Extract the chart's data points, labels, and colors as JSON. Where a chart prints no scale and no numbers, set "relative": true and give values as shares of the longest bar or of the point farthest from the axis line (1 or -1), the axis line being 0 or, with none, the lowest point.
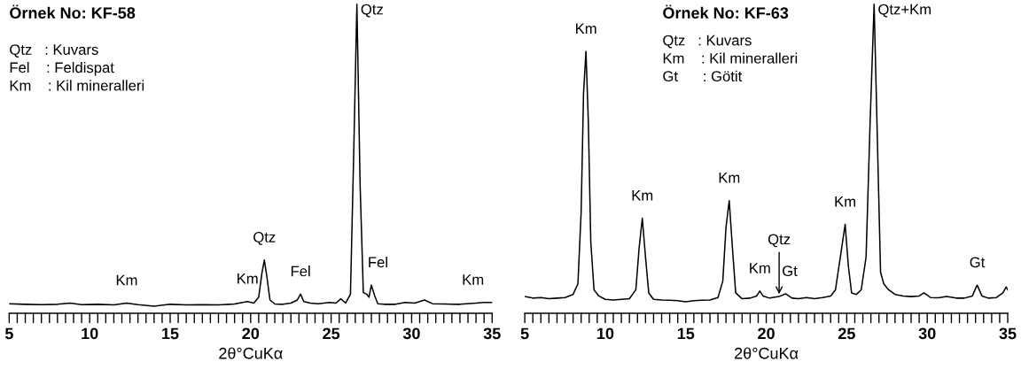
{
  "chart_data": [
    {
      "type": "line",
      "title": "Örnek No: KF-58",
      "xlabel": "2θ°CuKα",
      "relative": true,
      "xlim": [
        5,
        35
      ],
      "xticks": [
        5,
        {
          "value": 5.5,
          "label": null
        },
        {
          "value": 6,
          "label": null
        },
        {
          "value": 6.5,
          "label": null
        },
        {
          "value": 7,
          "label": null
        },
        {
          "value": 7.5,
          "label": null
        },
        {
          "value": 8,
          "label": null
        },
        {
          "value": 8.5,
          "label": null
        },
        {
          "value": 9,
          "label": null
        },
        {
          "value": 9.5,
          "label": null
        },
        10,
        {
          "value": 10.5,
          "label": null
        },
        {
          "value": 11,
          "label": null
        },
        {
          "value": 11.5,
          "label": null
        },
        {
          "value": 12,
          "label": null
        },
        {
          "value": 12.5,
          "label": null
        },
        {
          "value": 13,
          "label": null
        },
        {
          "value": 13.5,
          "label": null
        },
        {
          "value": 14,
          "label": null
        },
        {
          "value": 14.5,
          "label": null
        },
        15,
        {
          "value": 15.5,
          "label": null
        },
        {
          "value": 16,
          "label": null
        },
        {
          "value": 16.5,
          "label": null
        },
        {
          "value": 17,
          "label": null
        },
        {
          "value": 17.5,
          "label": null
        },
        {
          "value": 18,
          "label": null
        },
        {
          "value": 18.5,
          "label": null
        },
        {
          "value": 19,
          "label": null
        },
        {
          "value": 19.5,
          "label": null
        },
        20,
        {
          "value": 20.5,
          "label": null
        },
        {
          "value": 21,
          "label": null
        },
        {
          "value": 21.5,
          "label": null
        },
        {
          "value": 22,
          "label": null
        },
        {
          "value": 22.5,
          "label": null
        },
        {
          "value": 23,
          "label": null
        },
        {
          "value": 23.5,
          "label": null
        },
        {
          "value": 24,
          "label": null
        },
        {
          "value": 24.5,
          "label": null
        },
        25,
        {
          "value": 25.5,
          "label": null
        },
        {
          "value": 26,
          "label": null
        },
        {
          "value": 26.5,
          "label": null
        },
        {
          "value": 27,
          "label": null
        },
        {
          "value": 27.5,
          "label": null
        },
        {
          "value": 28,
          "label": null
        },
        {
          "value": 28.5,
          "label": null
        },
        {
          "value": 29,
          "label": null
        },
        {
          "value": 29.5,
          "label": null
        },
        30,
        {
          "value": 30.5,
          "label": null
        },
        {
          "value": 31,
          "label": null
        },
        {
          "value": 31.5,
          "label": null
        },
        {
          "value": 32,
          "label": null
        },
        {
          "value": 32.5,
          "label": null
        },
        {
          "value": 33,
          "label": null
        },
        {
          "value": 33.5,
          "label": null
        },
        {
          "value": 34,
          "label": null
        },
        {
          "value": 34.5,
          "label": null
        },
        35
      ],
      "tick_labels": "x",
      "grid": false,
      "legend": false,
      "marker": "none",
      "line_style": "solid",
      "series": [
        {
          "color": "#000000",
          "x": [
            5,
            6,
            7,
            8,
            8.8,
            9.5,
            10.5,
            11.5,
            12.3,
            13,
            14,
            15,
            16,
            17,
            18,
            19,
            19.8,
            20.2,
            20.5,
            20.7,
            20.85,
            21.0,
            21.2,
            21.5,
            22,
            22.5,
            22.9,
            23.1,
            23.3,
            23.7,
            24.2,
            24.9,
            25.3,
            25.6,
            25.9,
            26.2,
            26.4,
            26.6,
            26.8,
            27.0,
            27.2,
            27.35,
            27.5,
            27.7,
            27.9,
            28.3,
            29,
            29.6,
            30.2,
            30.8,
            31.3,
            32,
            33,
            34,
            34.5,
            35
          ],
          "values": [
            0.031,
            0.029,
            0.028,
            0.029,
            0.033,
            0.028,
            0.029,
            0.027,
            0.033,
            0.028,
            0.023,
            0.029,
            0.027,
            0.028,
            0.027,
            0.03,
            0.038,
            0.033,
            0.052,
            0.13,
            0.172,
            0.121,
            0.043,
            0.03,
            0.029,
            0.033,
            0.043,
            0.062,
            0.038,
            0.033,
            0.031,
            0.035,
            0.033,
            0.047,
            0.033,
            0.062,
            0.512,
            1,
            0.414,
            0.067,
            0.062,
            0.052,
            0.091,
            0.057,
            0.031,
            0.029,
            0.029,
            0.035,
            0.033,
            0.043,
            0.031,
            0.03,
            0.029,
            0.033,
            0.035,
            0.035
          ]
        }
      ],
      "annotations": [
        "Qtz   : Kuvars",
        "Fel    : Feldispat",
        "Km    : Kil mineralleri",
        {
          "text": "Km",
          "x": 12.3,
          "y": 0.033
        },
        {
          "text": "Km",
          "x": 19.8,
          "y": 0.038
        },
        {
          "text": "Qtz",
          "x": 20.85,
          "y": 0.172
        },
        {
          "text": "Fel",
          "x": 23.1,
          "y": 0.062
        },
        {
          "text": "Qtz",
          "x": 26.6,
          "y": 1
        },
        {
          "text": "Fel",
          "x": 27.5,
          "y": 0.091
        },
        {
          "text": "Km",
          "x": 34.5,
          "y": 0.035
        }
      ]
    },
    {
      "type": "line",
      "title": "Örnek No: KF-63",
      "xlabel": "2θ°CuKα",
      "relative": true,
      "xlim": [
        5,
        35
      ],
      "xticks": [
        5,
        {
          "value": 5.5,
          "label": null
        },
        {
          "value": 6,
          "label": null
        },
        {
          "value": 6.5,
          "label": null
        },
        {
          "value": 7,
          "label": null
        },
        {
          "value": 7.5,
          "label": null
        },
        {
          "value": 8,
          "label": null
        },
        {
          "value": 8.5,
          "label": null
        },
        {
          "value": 9,
          "label": null
        },
        {
          "value": 9.5,
          "label": null
        },
        10,
        {
          "value": 10.5,
          "label": null
        },
        {
          "value": 11,
          "label": null
        },
        {
          "value": 11.5,
          "label": null
        },
        {
          "value": 12,
          "label": null
        },
        {
          "value": 12.5,
          "label": null
        },
        {
          "value": 13,
          "label": null
        },
        {
          "value": 13.5,
          "label": null
        },
        {
          "value": 14,
          "label": null
        },
        {
          "value": 14.5,
          "label": null
        },
        15,
        {
          "value": 15.5,
          "label": null
        },
        {
          "value": 16,
          "label": null
        },
        {
          "value": 16.5,
          "label": null
        },
        {
          "value": 17,
          "label": null
        },
        {
          "value": 17.5,
          "label": null
        },
        {
          "value": 18,
          "label": null
        },
        {
          "value": 18.5,
          "label": null
        },
        {
          "value": 19,
          "label": null
        },
        {
          "value": 19.5,
          "label": null
        },
        20,
        {
          "value": 20.5,
          "label": null
        },
        {
          "value": 21,
          "label": null
        },
        {
          "value": 21.5,
          "label": null
        },
        {
          "value": 22,
          "label": null
        },
        {
          "value": 22.5,
          "label": null
        },
        {
          "value": 23,
          "label": null
        },
        {
          "value": 23.5,
          "label": null
        },
        {
          "value": 24,
          "label": null
        },
        {
          "value": 24.5,
          "label": null
        },
        25,
        {
          "value": 25.5,
          "label": null
        },
        {
          "value": 26,
          "label": null
        },
        {
          "value": 26.5,
          "label": null
        },
        {
          "value": 27,
          "label": null
        },
        {
          "value": 27.5,
          "label": null
        },
        {
          "value": 28,
          "label": null
        },
        {
          "value": 28.5,
          "label": null
        },
        {
          "value": 29,
          "label": null
        },
        {
          "value": 29.5,
          "label": null
        },
        30,
        {
          "value": 30.5,
          "label": null
        },
        {
          "value": 31,
          "label": null
        },
        {
          "value": 31.5,
          "label": null
        },
        {
          "value": 32,
          "label": null
        },
        {
          "value": 32.5,
          "label": null
        },
        {
          "value": 33,
          "label": null
        },
        {
          "value": 33.5,
          "label": null
        },
        {
          "value": 34,
          "label": null
        },
        {
          "value": 34.5,
          "label": null
        },
        35
      ],
      "tick_labels": "x",
      "grid": false,
      "legend": false,
      "marker": "none",
      "line_style": "solid",
      "series": [
        {
          "color": "#000000",
          "x": [
            5,
            5.5,
            6,
            6.5,
            7,
            7.5,
            8,
            8.3,
            8.5,
            8.65,
            8.8,
            8.95,
            9.1,
            9.3,
            9.6,
            10,
            10.5,
            11,
            11.5,
            11.9,
            12.1,
            12.3,
            12.5,
            12.7,
            13,
            13.5,
            14,
            14.5,
            15,
            15.5,
            16,
            16.5,
            17,
            17.3,
            17.5,
            17.7,
            17.9,
            18.1,
            18.5,
            19,
            19.4,
            19.6,
            19.8,
            20.2,
            20.8,
            21.2,
            21.6,
            22,
            22.5,
            23,
            23.5,
            24,
            24.3,
            24.6,
            24.9,
            25.1,
            25.3,
            25.6,
            25.9,
            26.2,
            26.45,
            26.7,
            26.9,
            27.1,
            27.3,
            27.6,
            28,
            28.5,
            29,
            29.5,
            29.8,
            30.2,
            30.7,
            31.2,
            31.8,
            32.3,
            32.8,
            33.1,
            33.4,
            33.8,
            34.3,
            34.7,
            34.9,
            35
          ],
          "values": [
            0.054,
            0.049,
            0.051,
            0.047,
            0.049,
            0.051,
            0.061,
            0.095,
            0.326,
            0.711,
            0.846,
            0.615,
            0.23,
            0.076,
            0.056,
            0.045,
            0.043,
            0.045,
            0.047,
            0.076,
            0.21,
            0.307,
            0.181,
            0.066,
            0.045,
            0.043,
            0.042,
            0.041,
            0.037,
            0.041,
            0.042,
            0.043,
            0.051,
            0.104,
            0.278,
            0.364,
            0.21,
            0.066,
            0.047,
            0.049,
            0.056,
            0.072,
            0.056,
            0.049,
            0.054,
            0.063,
            0.049,
            0.047,
            0.051,
            0.047,
            0.051,
            0.056,
            0.076,
            0.181,
            0.287,
            0.153,
            0.066,
            0.061,
            0.076,
            0.181,
            0.615,
            1,
            0.567,
            0.133,
            0.095,
            0.076,
            0.061,
            0.056,
            0.054,
            0.056,
            0.066,
            0.051,
            0.05,
            0.054,
            0.049,
            0.049,
            0.056,
            0.091,
            0.056,
            0.049,
            0.051,
            0.066,
            0.085,
            0.076
          ]
        }
      ],
      "annotations": [
        "Qtz   : Kuvars",
        "Km    : Kil mineralleri",
        "Gt      : Götit",
        {
          "text": "Km",
          "x": 8.8,
          "y": 0.846
        },
        {
          "text": "Km",
          "x": 12.3,
          "y": 0.307
        },
        {
          "text": "Km",
          "x": 17.7,
          "y": 0.364
        },
        {
          "text": "Km",
          "x": 19.6,
          "y": 0.072
        },
        {
          "text": "Qtz",
          "x": 20.8,
          "y": 0.054
        },
        {
          "text": "Gt",
          "x": 21.2,
          "y": 0.063
        },
        {
          "text": "Km",
          "x": 24.9,
          "y": 0.287
        },
        {
          "text": "Qtz+Km",
          "x": 26.7,
          "y": 1
        },
        {
          "text": "Gt",
          "x": 33.1,
          "y": 0.091
        }
      ]
    }
  ]
}
